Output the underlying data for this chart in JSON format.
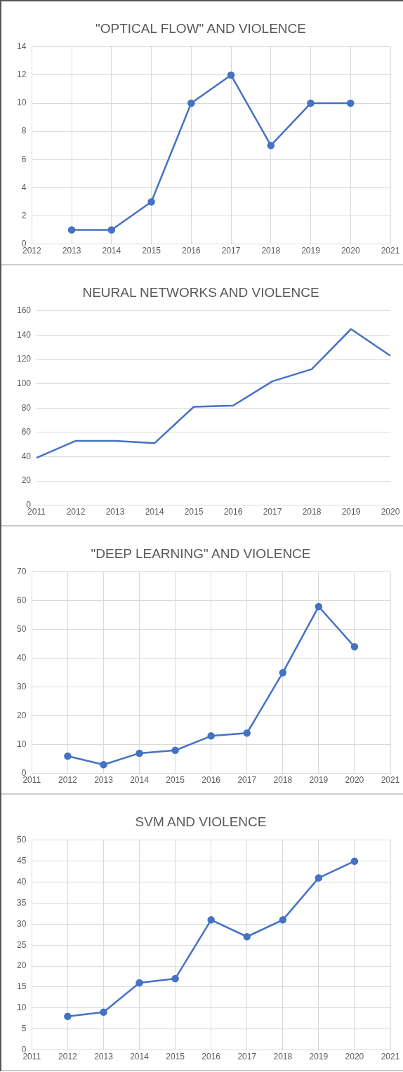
{
  "chart_data": [
    {
      "type": "line",
      "title": "\"OPTICAL FLOW\" AND VIOLENCE",
      "x": [
        2013,
        2014,
        2015,
        2016,
        2017,
        2018,
        2019,
        2020
      ],
      "series": [
        {
          "color": "#4472c4",
          "values": [
            1,
            1,
            3,
            10,
            12,
            7,
            10,
            10
          ]
        }
      ],
      "xlim": [
        2012,
        2021
      ],
      "xticks": [
        2012,
        2013,
        2014,
        2015,
        2016,
        2017,
        2018,
        2019,
        2020,
        2021
      ],
      "ylim": [
        0,
        14
      ],
      "yticks": [
        0,
        2,
        4,
        6,
        8,
        10,
        12,
        14
      ],
      "grid": true,
      "legend": false,
      "marker": "circle"
    },
    {
      "type": "line",
      "title": "NEURAL NETWORKS AND VIOLENCE",
      "categories": [
        "2011",
        "2012",
        "2013",
        "2014",
        "2015",
        "2016",
        "2017",
        "2018",
        "2019",
        "2020"
      ],
      "series": [
        {
          "color": "#4472c4",
          "values": [
            39,
            53,
            53,
            51,
            81,
            82,
            102,
            112,
            145,
            123
          ]
        }
      ],
      "ylim": [
        0,
        160
      ],
      "yticks": [
        0,
        20,
        40,
        60,
        80,
        100,
        120,
        140,
        160
      ],
      "grid": "y",
      "legend": false,
      "marker": "none"
    },
    {
      "type": "line",
      "title": "\"DEEP LEARNING\" AND VIOLENCE",
      "x": [
        2012,
        2013,
        2014,
        2015,
        2016,
        2017,
        2018,
        2019,
        2020
      ],
      "series": [
        {
          "color": "#4472c4",
          "values": [
            6,
            3,
            7,
            8,
            13,
            14,
            35,
            58,
            44
          ]
        }
      ],
      "xlim": [
        2011,
        2021
      ],
      "xticks": [
        2011,
        2012,
        2013,
        2014,
        2015,
        2016,
        2017,
        2018,
        2019,
        2020,
        2021
      ],
      "ylim": [
        0,
        70
      ],
      "yticks": [
        0,
        10,
        20,
        30,
        40,
        50,
        60,
        70
      ],
      "grid": true,
      "legend": false,
      "marker": "circle"
    },
    {
      "type": "line",
      "title": "SVM AND VIOLENCE",
      "x": [
        2012,
        2013,
        2014,
        2015,
        2016,
        2017,
        2018,
        2019,
        2020
      ],
      "series": [
        {
          "color": "#4472c4",
          "values": [
            8,
            9,
            16,
            17,
            31,
            27,
            31,
            41,
            45
          ]
        }
      ],
      "xlim": [
        2011,
        2021
      ],
      "xticks": [
        2011,
        2012,
        2013,
        2014,
        2015,
        2016,
        2017,
        2018,
        2019,
        2020,
        2021
      ],
      "ylim": [
        0,
        50
      ],
      "yticks": [
        0,
        5,
        10,
        15,
        20,
        25,
        30,
        35,
        40,
        45,
        50
      ],
      "grid": true,
      "legend": false,
      "marker": "circle"
    }
  ]
}
